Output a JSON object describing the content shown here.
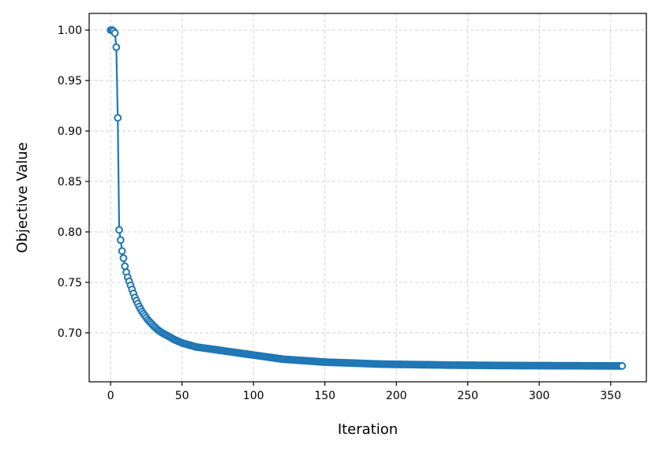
{
  "chart_data": {
    "type": "line",
    "xlabel": "Iteration",
    "ylabel": "Objective Value",
    "xlim": [
      -15,
      375
    ],
    "ylim": [
      0.6515,
      1.0165
    ],
    "xticks": [
      0,
      50,
      100,
      150,
      200,
      250,
      300,
      350
    ],
    "yticks": [
      0.7,
      0.75,
      0.8,
      0.85,
      0.9,
      0.95,
      1.0
    ],
    "ytick_labels": [
      "0.70",
      "0.75",
      "0.80",
      "0.85",
      "0.90",
      "0.95",
      "1.00"
    ],
    "xtick_labels": [
      "0",
      "50",
      "100",
      "150",
      "200",
      "250",
      "300",
      "350"
    ],
    "grid": true,
    "marker": "open-circle",
    "series": [
      {
        "color": "#1f77b4",
        "x": [
          0,
          1,
          2,
          3,
          4,
          5,
          6,
          7,
          8,
          9,
          10,
          11,
          12,
          13,
          14,
          15,
          16,
          17,
          18,
          19,
          20,
          22,
          24,
          26,
          28,
          30,
          33,
          36,
          40,
          45,
          50,
          55,
          60,
          70,
          80,
          90,
          100,
          110,
          120,
          130,
          140,
          150,
          160,
          170,
          180,
          190,
          200,
          220,
          240,
          260,
          280,
          300,
          320,
          340,
          358
        ],
        "y": [
          1.0,
          1.0,
          0.999,
          0.997,
          0.983,
          0.913,
          0.802,
          0.792,
          0.781,
          0.774,
          0.766,
          0.76,
          0.755,
          0.751,
          0.747,
          0.743,
          0.739,
          0.735,
          0.732,
          0.729,
          0.726,
          0.721,
          0.717,
          0.713,
          0.71,
          0.707,
          0.703,
          0.7,
          0.697,
          0.693,
          0.69,
          0.688,
          0.686,
          0.684,
          0.682,
          0.68,
          0.678,
          0.676,
          0.674,
          0.673,
          0.672,
          0.671,
          0.6705,
          0.67,
          0.6695,
          0.669,
          0.6688,
          0.6684,
          0.668,
          0.6678,
          0.6676,
          0.6675,
          0.6674,
          0.6673,
          0.6672
        ]
      }
    ]
  }
}
